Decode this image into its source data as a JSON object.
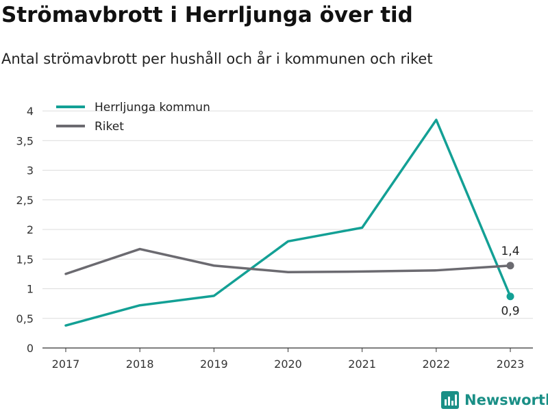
{
  "header": {
    "title": "Strömavbrott i Herrljunga över tid",
    "subtitle": "Antal strömavbrott per hushåll och år i kommunen och riket"
  },
  "brand": {
    "name": "Newsworthy",
    "color": "#1a8f86",
    "icon": "bar-chart-logo-icon"
  },
  "chart_data": {
    "type": "line",
    "x": [
      2017,
      2018,
      2019,
      2020,
      2021,
      2022,
      2023
    ],
    "ylim": [
      0,
      4
    ],
    "yticks": [
      0,
      0.5,
      1,
      1.5,
      2,
      2.5,
      3,
      3.5,
      4
    ],
    "ytick_labels": [
      "0",
      "0,5",
      "1",
      "1,5",
      "2",
      "2,5",
      "3",
      "3,5",
      "4"
    ],
    "grid": true,
    "legend_position": "top-left",
    "series": [
      {
        "name": "Herrljunga kommun",
        "color": "#13a095",
        "values": [
          0.38,
          0.72,
          0.88,
          1.8,
          2.03,
          3.85,
          0.87
        ],
        "end_label": "0,9"
      },
      {
        "name": "Riket",
        "color": "#6b6a70",
        "values": [
          1.25,
          1.67,
          1.39,
          1.28,
          1.29,
          1.31,
          1.39
        ],
        "end_label": "1,4"
      }
    ]
  }
}
